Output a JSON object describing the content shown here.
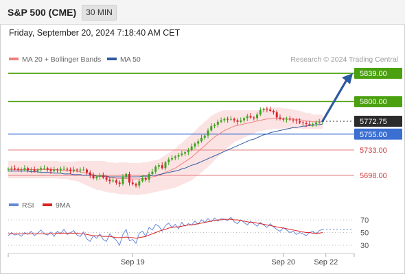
{
  "header": {
    "title": "S&P 500 (CME)",
    "timeframe": "30 MIN"
  },
  "datetime": "Friday, September 20, 2024 7:18:40 AM CET",
  "colors": {
    "green_level": "#4aa00e",
    "blue_level": "#3b6fd1",
    "red_level": "#e07b7b",
    "price_tag": "#2b2b2b",
    "bull_candle": "#3fa41e",
    "bear_candle": "#d9202b",
    "bollinger_fill": "#fcdede",
    "ma20": "#f08080",
    "ma50": "#2c5aa0",
    "arrow": "#2c5aa0",
    "rsi": "#6688dd",
    "rsi_ma": "#dd2222"
  },
  "chart_data": [
    {
      "type": "candlestick",
      "legend": [
        {
          "label": "MA 20 + Bollinger Bands",
          "color": "#f08080"
        },
        {
          "label": "MA 50",
          "color": "#2c5aa0"
        }
      ],
      "watermark": "Research © 2024 Trading Central",
      "ylim": [
        5658,
        5848
      ],
      "current_price": 5772.75,
      "levels": [
        {
          "value": 5839.0,
          "label": "5839.00",
          "kind": "resistance"
        },
        {
          "value": 5800.0,
          "label": "5800.00",
          "kind": "resistance"
        },
        {
          "value": 5772.75,
          "label": "5772.75",
          "kind": "current"
        },
        {
          "value": 5755.0,
          "label": "5755.00",
          "kind": "pivot"
        },
        {
          "value": 5733.0,
          "label": "5733.00",
          "kind": "support"
        },
        {
          "value": 5698.0,
          "label": "5698.00",
          "kind": "support"
        }
      ],
      "x_ticks": [
        {
          "bar": 38,
          "label": "Sep 19"
        },
        {
          "bar": 84,
          "label": "Sep 20"
        },
        {
          "bar": 97,
          "label": "Sep 22"
        }
      ],
      "close": [
        5707,
        5708,
        5707,
        5706,
        5706,
        5708,
        5705,
        5706,
        5704,
        5706,
        5708,
        5708,
        5706,
        5704,
        5706,
        5705,
        5707,
        5707,
        5706,
        5704,
        5706,
        5705,
        5706,
        5706,
        5702,
        5698,
        5694,
        5696,
        5698,
        5695,
        5692,
        5690,
        5691,
        5688,
        5686,
        5696,
        5700,
        5688,
        5686,
        5684,
        5690,
        5694,
        5692,
        5700,
        5703,
        5710,
        5712,
        5708,
        5716,
        5720,
        5722,
        5724,
        5726,
        5728,
        5730,
        5733,
        5738,
        5742,
        5745,
        5750,
        5753,
        5760,
        5766,
        5768,
        5772,
        5774,
        5776,
        5775,
        5776,
        5774,
        5772,
        5774,
        5777,
        5780,
        5778,
        5777,
        5782,
        5788,
        5790,
        5789,
        5787,
        5785,
        5778,
        5776,
        5775,
        5776,
        5775,
        5774,
        5773,
        5771,
        5770,
        5769,
        5768,
        5769,
        5771,
        5772,
        5773
      ],
      "ma20": [
        5706,
        5706,
        5706,
        5706,
        5706,
        5706,
        5706,
        5706,
        5706,
        5706,
        5706,
        5706,
        5706,
        5706,
        5706,
        5706,
        5705,
        5705,
        5705,
        5704,
        5704,
        5704,
        5703,
        5702,
        5701,
        5700,
        5699,
        5698,
        5698,
        5697,
        5696,
        5695,
        5695,
        5694,
        5694,
        5694,
        5694,
        5693,
        5693,
        5693,
        5693,
        5694,
        5694,
        5695,
        5696,
        5697,
        5698,
        5700,
        5702,
        5704,
        5706,
        5708,
        5711,
        5714,
        5717,
        5720,
        5723,
        5727,
        5731,
        5735,
        5739,
        5743,
        5747,
        5751,
        5754,
        5757,
        5760,
        5762,
        5764,
        5766,
        5767,
        5768,
        5769,
        5770,
        5771,
        5772,
        5773,
        5774,
        5775,
        5776,
        5776,
        5777,
        5777,
        5777,
        5777,
        5776,
        5776,
        5776,
        5775,
        5775,
        5774,
        5773,
        5773,
        5772,
        5772,
        5772,
        5772
      ],
      "ma50": [
        5704,
        5704,
        5704,
        5704,
        5704,
        5704,
        5704,
        5703,
        5703,
        5703,
        5702,
        5702,
        5702,
        5702,
        5701,
        5701,
        5701,
        5700,
        5700,
        5700,
        5699,
        5699,
        5699,
        5698,
        5698,
        5698,
        5698,
        5697,
        5697,
        5697,
        5697,
        5696,
        5696,
        5696,
        5696,
        5696,
        5696,
        5696,
        5696,
        5696,
        5696,
        5697,
        5697,
        5697,
        5698,
        5698,
        5699,
        5700,
        5701,
        5702,
        5703,
        5704,
        5705,
        5707,
        5708,
        5710,
        5712,
        5713,
        5715,
        5717,
        5719,
        5721,
        5723,
        5725,
        5727,
        5729,
        5731,
        5733,
        5735,
        5737,
        5739,
        5741,
        5743,
        5745,
        5747,
        5748,
        5750,
        5752,
        5754,
        5755,
        5757,
        5758,
        5759,
        5760,
        5761,
        5762,
        5763,
        5764,
        5764,
        5765,
        5766,
        5766,
        5767,
        5767,
        5768,
        5768,
        5769
      ],
      "bb_half_width": [
        12,
        12,
        12,
        12,
        12,
        12,
        12,
        12,
        12,
        12,
        12,
        12,
        12,
        12,
        12,
        12,
        12,
        12,
        12,
        13,
        13,
        14,
        15,
        16,
        17,
        18,
        19,
        20,
        20,
        21,
        21,
        21,
        21,
        21,
        22,
        22,
        22,
        22,
        22,
        22,
        22,
        22,
        22,
        22,
        22,
        22,
        22,
        23,
        24,
        25,
        26,
        27,
        28,
        29,
        30,
        31,
        32,
        32,
        33,
        33,
        33,
        33,
        33,
        32,
        31,
        30,
        28,
        26,
        24,
        22,
        21,
        20,
        19,
        18,
        17,
        16,
        15,
        15,
        15,
        15,
        15,
        15,
        15,
        15,
        14,
        14,
        14,
        13,
        13,
        12,
        12,
        11,
        11,
        10,
        10,
        10,
        10
      ]
    },
    {
      "type": "line",
      "legend": [
        {
          "label": "RSI",
          "color": "#6688dd"
        },
        {
          "label": "9MA",
          "color": "#dd2222"
        }
      ],
      "ylim": [
        20,
        80
      ],
      "y_ticks": [
        70,
        50,
        30
      ],
      "rsi": [
        45,
        50,
        46,
        48,
        44,
        50,
        47,
        52,
        45,
        49,
        54,
        48,
        46,
        51,
        44,
        52,
        48,
        55,
        47,
        50,
        53,
        46,
        44,
        51,
        40,
        36,
        45,
        41,
        48,
        39,
        36,
        48,
        42,
        38,
        30,
        47,
        55,
        37,
        39,
        33,
        49,
        52,
        44,
        58,
        54,
        63,
        60,
        52,
        61,
        65,
        58,
        63,
        56,
        66,
        60,
        64,
        62,
        68,
        63,
        70,
        66,
        72,
        67,
        73,
        68,
        72,
        71,
        69,
        74,
        67,
        64,
        70,
        66,
        62,
        68,
        64,
        60,
        66,
        62,
        58,
        64,
        59,
        55,
        52,
        58,
        54,
        50,
        52,
        47,
        50,
        48,
        45,
        50,
        52,
        48,
        53,
        55
      ],
      "rsi_ma": [
        48,
        48,
        48,
        48,
        48,
        48,
        48,
        48,
        48,
        48,
        48,
        48,
        48,
        48,
        48,
        49,
        49,
        49,
        49,
        49,
        49,
        49,
        48,
        48,
        47,
        46,
        45,
        45,
        45,
        44,
        44,
        44,
        43,
        42,
        42,
        42,
        43,
        42,
        42,
        41,
        42,
        43,
        44,
        46,
        48,
        50,
        52,
        54,
        55,
        57,
        58,
        59,
        59,
        60,
        61,
        62,
        62,
        63,
        64,
        65,
        66,
        67,
        68,
        69,
        70,
        70,
        71,
        71,
        71,
        70,
        70,
        69,
        68,
        67,
        66,
        66,
        65,
        64,
        63,
        62,
        61,
        60,
        59,
        58,
        57,
        56,
        55,
        54,
        53,
        52,
        51,
        50,
        50,
        49,
        49,
        49,
        50
      ]
    }
  ]
}
